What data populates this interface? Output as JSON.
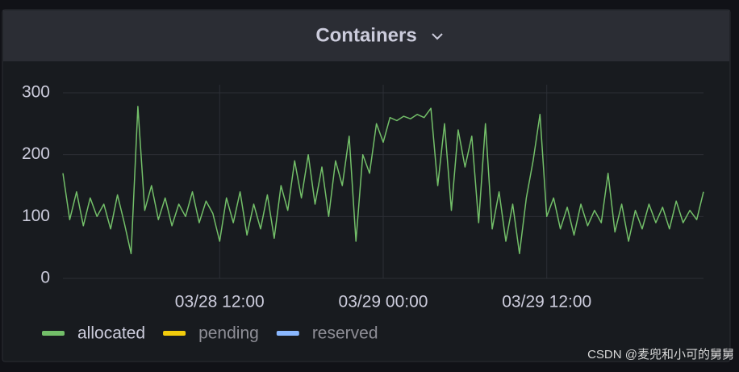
{
  "chart_data": {
    "type": "line",
    "title": "Containers",
    "x": [
      "03/28 00:30",
      "03/28 01:00",
      "03/28 01:30",
      "03/28 02:00",
      "03/28 02:30",
      "03/28 03:00",
      "03/28 03:30",
      "03/28 04:00",
      "03/28 04:30",
      "03/28 05:00",
      "03/28 05:30",
      "03/28 06:00",
      "03/28 06:30",
      "03/28 07:00",
      "03/28 07:30",
      "03/28 08:00",
      "03/28 08:30",
      "03/28 09:00",
      "03/28 09:30",
      "03/28 10:00",
      "03/28 10:30",
      "03/28 11:00",
      "03/28 11:30",
      "03/28 12:00",
      "03/28 12:30",
      "03/28 13:00",
      "03/28 13:30",
      "03/28 14:00",
      "03/28 14:30",
      "03/28 15:00",
      "03/28 15:30",
      "03/28 16:00",
      "03/28 16:30",
      "03/28 17:00",
      "03/28 17:30",
      "03/28 18:00",
      "03/28 18:30",
      "03/28 19:00",
      "03/28 19:30",
      "03/28 20:00",
      "03/28 20:30",
      "03/28 21:00",
      "03/28 21:30",
      "03/28 22:00",
      "03/28 22:30",
      "03/28 23:00",
      "03/28 23:30",
      "03/29 00:00",
      "03/29 00:30",
      "03/29 01:00",
      "03/29 01:30",
      "03/29 02:00",
      "03/29 02:30",
      "03/29 03:00",
      "03/29 03:30",
      "03/29 04:00",
      "03/29 04:30",
      "03/29 05:00",
      "03/29 05:30",
      "03/29 06:00",
      "03/29 06:30",
      "03/29 07:00",
      "03/29 07:30",
      "03/29 08:00",
      "03/29 08:30",
      "03/29 09:00",
      "03/29 09:30",
      "03/29 10:00",
      "03/29 10:30",
      "03/29 11:00",
      "03/29 11:30",
      "03/29 12:00",
      "03/29 12:30",
      "03/29 13:00",
      "03/29 13:30",
      "03/29 14:00",
      "03/29 14:30",
      "03/29 15:00",
      "03/29 15:30",
      "03/29 16:00",
      "03/29 16:30",
      "03/29 17:00",
      "03/29 17:30",
      "03/29 18:00",
      "03/29 18:30",
      "03/29 19:00",
      "03/29 19:30",
      "03/29 20:00",
      "03/29 20:30",
      "03/29 21:00",
      "03/29 21:30",
      "03/29 22:00",
      "03/29 22:30",
      "03/29 23:00",
      "03/29 23:30"
    ],
    "series": [
      {
        "name": "allocated",
        "color": "#73bf69",
        "values": [
          170,
          95,
          140,
          85,
          130,
          100,
          120,
          80,
          135,
          90,
          40,
          278,
          110,
          150,
          95,
          130,
          85,
          120,
          100,
          140,
          90,
          125,
          105,
          60,
          130,
          90,
          140,
          70,
          120,
          80,
          135,
          65,
          150,
          110,
          190,
          130,
          200,
          120,
          180,
          100,
          190,
          150,
          230,
          60,
          200,
          170,
          250,
          220,
          260,
          255,
          262,
          258,
          265,
          260,
          275,
          150,
          250,
          110,
          240,
          180,
          230,
          90,
          250,
          80,
          140,
          60,
          120,
          40,
          130,
          190,
          265,
          100,
          130,
          80,
          115,
          70,
          120,
          85,
          110,
          90,
          170,
          75,
          120,
          60,
          110,
          80,
          120,
          90,
          115,
          80,
          125,
          90,
          110,
          95,
          140
        ]
      },
      {
        "name": "pending",
        "color": "#f2cc0c"
      },
      {
        "name": "reserved",
        "color": "#8ab8ff"
      }
    ],
    "xlim": [
      "03/28 00:30",
      "03/29 23:30"
    ],
    "xticks": [
      "03/28 12:00",
      "03/29 00:00",
      "03/29 12:00"
    ],
    "ylim": [
      0,
      300
    ],
    "yticks": [
      0,
      100,
      200,
      300
    ],
    "grid": true
  },
  "watermark": "CSDN @麦兜和小可的舅舅"
}
